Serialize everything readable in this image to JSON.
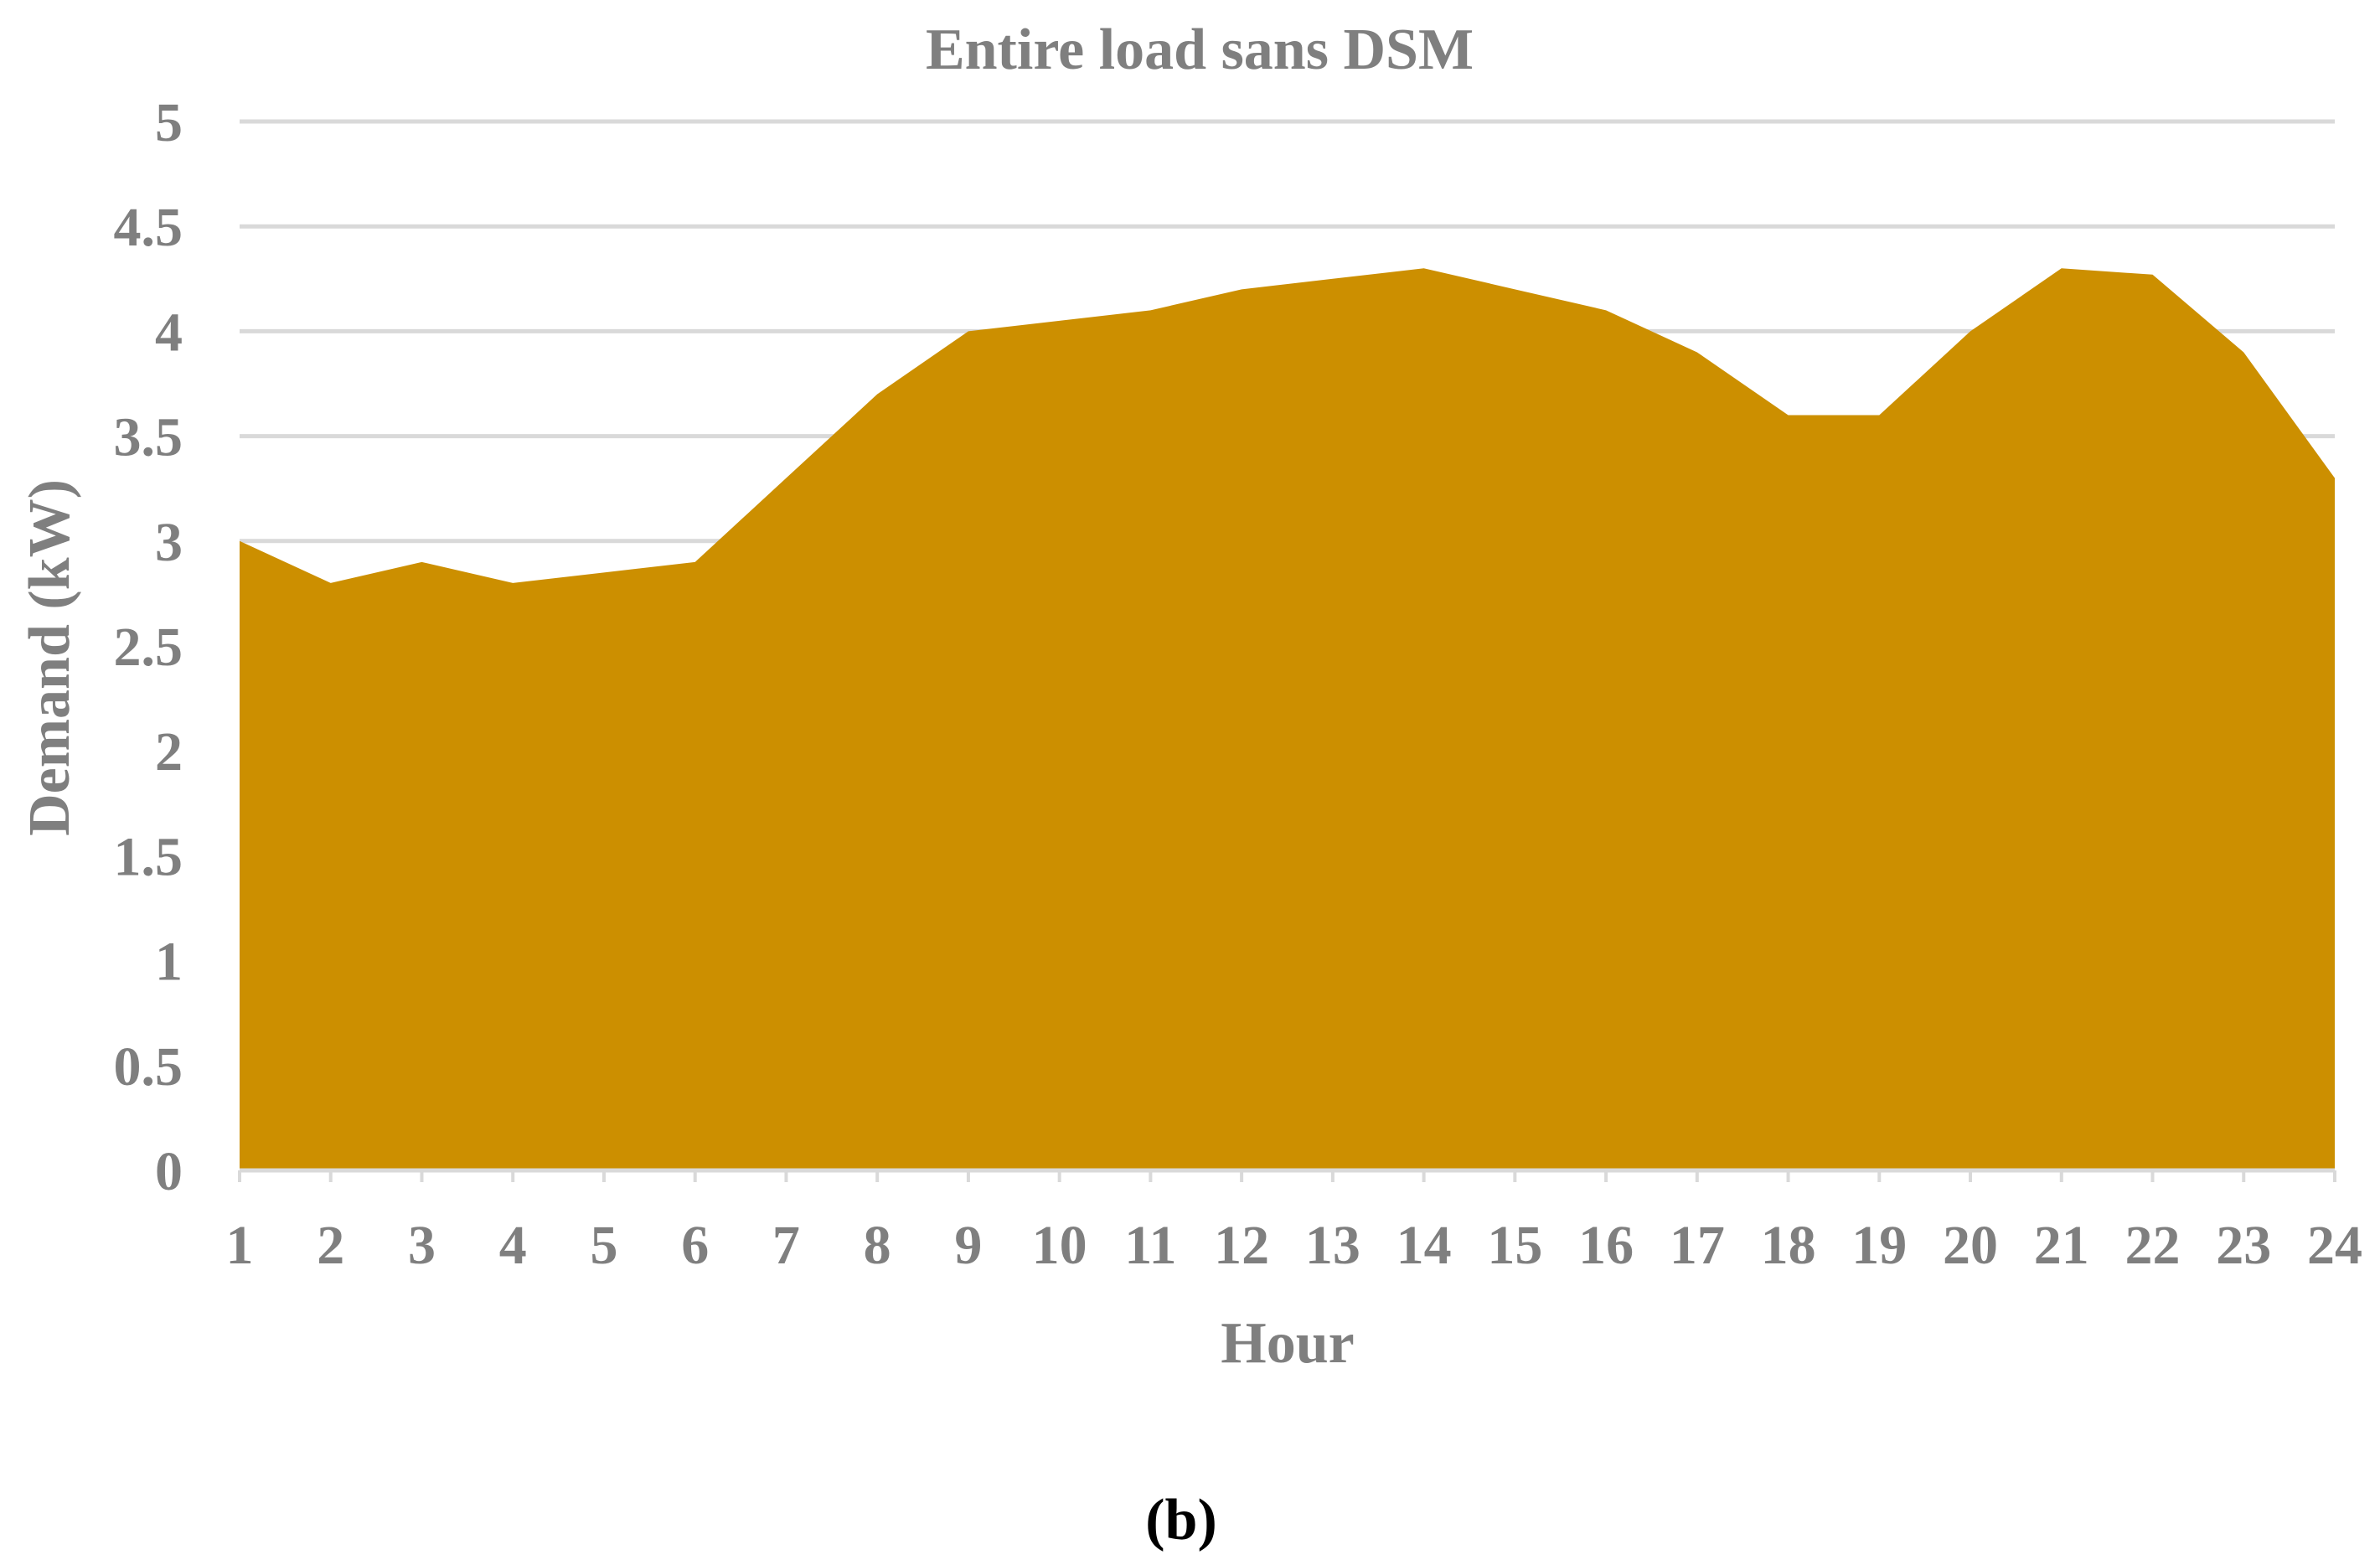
{
  "chart_data": {
    "type": "area",
    "title": "Entire load sans DSM",
    "xlabel": "Hour",
    "ylabel": "Demand (kW)",
    "x": [
      1,
      2,
      3,
      4,
      5,
      6,
      7,
      8,
      9,
      10,
      11,
      12,
      13,
      14,
      15,
      16,
      17,
      18,
      19,
      20,
      21,
      22,
      23,
      24
    ],
    "series": [
      {
        "values": [
          3.0,
          2.8,
          2.9,
          2.8,
          2.85,
          2.9,
          3.3,
          3.7,
          4.0,
          4.05,
          4.1,
          4.2,
          4.25,
          4.3,
          4.2,
          4.1,
          3.9,
          3.6,
          3.6,
          4.0,
          4.3,
          4.27,
          3.9,
          3.3
        ]
      }
    ],
    "ylim": [
      0,
      5
    ],
    "yticks": [
      "0",
      "0.5",
      "1",
      "1.5",
      "2",
      "2.5",
      "3",
      "3.5",
      "4",
      "4.5",
      "5"
    ],
    "xticks": [
      "1",
      "2",
      "3",
      "4",
      "5",
      "6",
      "7",
      "8",
      "9",
      "10",
      "11",
      "12",
      "13",
      "14",
      "15",
      "16",
      "17",
      "18",
      "19",
      "20",
      "21",
      "22",
      "23",
      "24"
    ],
    "grid": true,
    "legend": "none",
    "fill_color": "#cc8f00",
    "gridline_color": "#d9d9d9",
    "axis_color": "#d9d9d9",
    "text_color": "#7f7f7f"
  },
  "caption": "(b)"
}
